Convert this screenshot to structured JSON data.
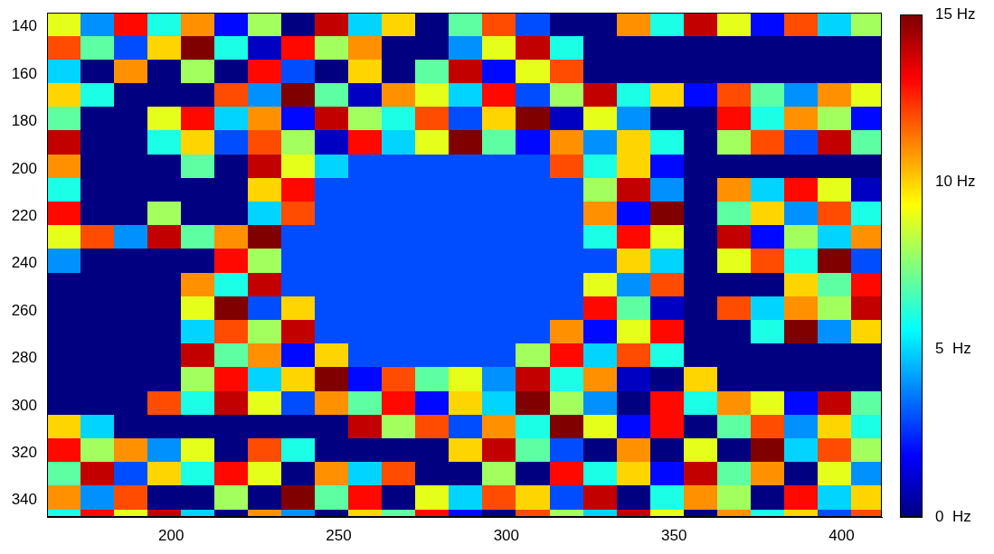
{
  "chart_data": {
    "type": "heatmap",
    "x": [
      168,
      178,
      188,
      198,
      208,
      218,
      228,
      238,
      248,
      258,
      268,
      278,
      288,
      298,
      308,
      318,
      328,
      338,
      348,
      358,
      368,
      378,
      388,
      398,
      408
    ],
    "y": [
      139,
      149,
      159,
      169,
      179,
      189,
      199,
      209,
      219,
      229,
      239,
      249,
      259,
      269,
      279,
      289,
      299,
      309,
      319,
      329,
      339,
      349
    ],
    "values": [
      [
        9,
        4,
        13,
        6,
        11,
        2,
        8,
        0,
        14,
        5,
        10,
        0,
        7,
        12,
        3,
        0,
        0,
        11,
        6,
        14,
        9,
        2,
        12,
        5,
        8
      ],
      [
        12,
        7,
        3,
        10,
        15,
        6,
        1,
        13,
        8,
        11,
        0,
        0,
        4,
        9,
        14,
        6,
        0,
        0,
        0,
        0,
        0,
        0,
        0,
        0,
        0
      ],
      [
        5,
        0,
        11,
        0,
        8,
        0,
        13,
        3,
        0,
        10,
        0,
        7,
        14,
        2,
        9,
        12,
        0,
        0,
        0,
        0,
        0,
        0,
        0,
        0,
        0
      ],
      [
        10,
        6,
        0,
        0,
        0,
        12,
        4,
        15,
        7,
        1,
        11,
        9,
        5,
        13,
        3,
        8,
        14,
        6,
        10,
        2,
        12,
        7,
        4,
        11,
        9
      ],
      [
        7,
        0,
        0,
        9,
        13,
        5,
        11,
        2,
        14,
        8,
        6,
        12,
        3,
        10,
        15,
        1,
        9,
        4,
        0,
        0,
        13,
        6,
        11,
        8,
        2
      ],
      [
        14,
        0,
        0,
        6,
        10,
        3,
        12,
        8,
        1,
        13,
        5,
        9,
        15,
        7,
        2,
        11,
        4,
        10,
        6,
        0,
        8,
        12,
        3,
        14,
        7
      ],
      [
        11,
        0,
        0,
        0,
        7,
        0,
        14,
        9,
        5,
        3,
        3,
        3,
        3,
        3,
        3,
        12,
        6,
        10,
        2,
        0,
        0,
        0,
        0,
        0,
        0
      ],
      [
        6,
        0,
        0,
        0,
        0,
        0,
        10,
        13,
        3,
        3,
        3,
        3,
        3,
        3,
        3,
        3,
        8,
        14,
        4,
        0,
        11,
        5,
        13,
        9,
        1
      ],
      [
        13,
        0,
        0,
        8,
        0,
        0,
        5,
        12,
        3,
        3,
        3,
        3,
        3,
        3,
        3,
        3,
        11,
        2,
        15,
        0,
        7,
        10,
        4,
        12,
        6
      ],
      [
        9,
        12,
        4,
        14,
        7,
        11,
        15,
        3,
        3,
        3,
        3,
        3,
        3,
        3,
        3,
        3,
        6,
        13,
        9,
        0,
        14,
        2,
        8,
        5,
        11
      ],
      [
        4,
        0,
        0,
        0,
        0,
        13,
        8,
        3,
        3,
        3,
        3,
        3,
        3,
        3,
        3,
        3,
        3,
        10,
        5,
        0,
        9,
        12,
        6,
        15,
        3
      ],
      [
        0,
        0,
        0,
        0,
        11,
        6,
        14,
        3,
        3,
        3,
        3,
        3,
        3,
        3,
        3,
        3,
        9,
        4,
        12,
        0,
        0,
        0,
        10,
        7,
        13
      ],
      [
        0,
        0,
        0,
        0,
        9,
        15,
        3,
        10,
        3,
        3,
        3,
        3,
        3,
        3,
        3,
        3,
        13,
        7,
        1,
        0,
        12,
        5,
        11,
        8,
        14
      ],
      [
        0,
        0,
        0,
        0,
        5,
        12,
        8,
        14,
        3,
        3,
        3,
        3,
        3,
        3,
        3,
        11,
        2,
        9,
        13,
        0,
        0,
        6,
        15,
        4,
        10
      ],
      [
        0,
        0,
        0,
        0,
        14,
        7,
        11,
        2,
        10,
        3,
        3,
        3,
        3,
        3,
        8,
        13,
        5,
        12,
        6,
        0,
        0,
        0,
        0,
        0,
        0
      ],
      [
        0,
        0,
        0,
        0,
        8,
        13,
        5,
        10,
        15,
        2,
        12,
        7,
        9,
        4,
        14,
        6,
        11,
        1,
        0,
        10,
        0,
        0,
        0,
        0,
        0
      ],
      [
        0,
        0,
        0,
        12,
        6,
        14,
        9,
        3,
        11,
        7,
        13,
        2,
        10,
        5,
        15,
        8,
        4,
        0,
        13,
        6,
        11,
        9,
        2,
        14,
        7
      ],
      [
        10,
        5,
        0,
        0,
        0,
        0,
        0,
        0,
        0,
        14,
        8,
        12,
        3,
        11,
        6,
        15,
        9,
        2,
        13,
        0,
        7,
        12,
        4,
        10,
        6
      ],
      [
        13,
        8,
        11,
        4,
        9,
        0,
        12,
        6,
        0,
        0,
        0,
        0,
        10,
        14,
        7,
        3,
        0,
        11,
        0,
        9,
        0,
        15,
        5,
        12,
        8
      ],
      [
        7,
        14,
        3,
        10,
        6,
        13,
        9,
        0,
        11,
        5,
        12,
        0,
        0,
        8,
        0,
        13,
        6,
        10,
        2,
        14,
        7,
        11,
        0,
        9,
        4
      ],
      [
        11,
        4,
        12,
        0,
        0,
        8,
        0,
        15,
        7,
        13,
        0,
        9,
        5,
        12,
        10,
        3,
        14,
        0,
        6,
        11,
        8,
        0,
        13,
        5,
        10
      ],
      [
        6,
        13,
        9,
        14,
        5,
        0,
        11,
        4,
        0,
        10,
        7,
        13,
        2,
        0,
        12,
        8,
        5,
        14,
        9,
        0,
        11,
        6,
        10,
        3,
        12
      ]
    ],
    "xlim": [
      163,
      412
    ],
    "ylim": [
      134,
      347
    ],
    "xticks": [
      200,
      250,
      300,
      350,
      400
    ],
    "yticks": [
      140,
      160,
      180,
      200,
      220,
      240,
      260,
      280,
      300,
      320,
      340
    ],
    "grid": false,
    "colorbar": {
      "range": [
        0,
        15
      ],
      "ticks": [
        {
          "value": 0,
          "label": "0  Hz"
        },
        {
          "value": 5,
          "label": "5  Hz"
        },
        {
          "value": 10,
          "label": "10 Hz"
        },
        {
          "value": 15,
          "label": "15 Hz"
        }
      ]
    }
  }
}
